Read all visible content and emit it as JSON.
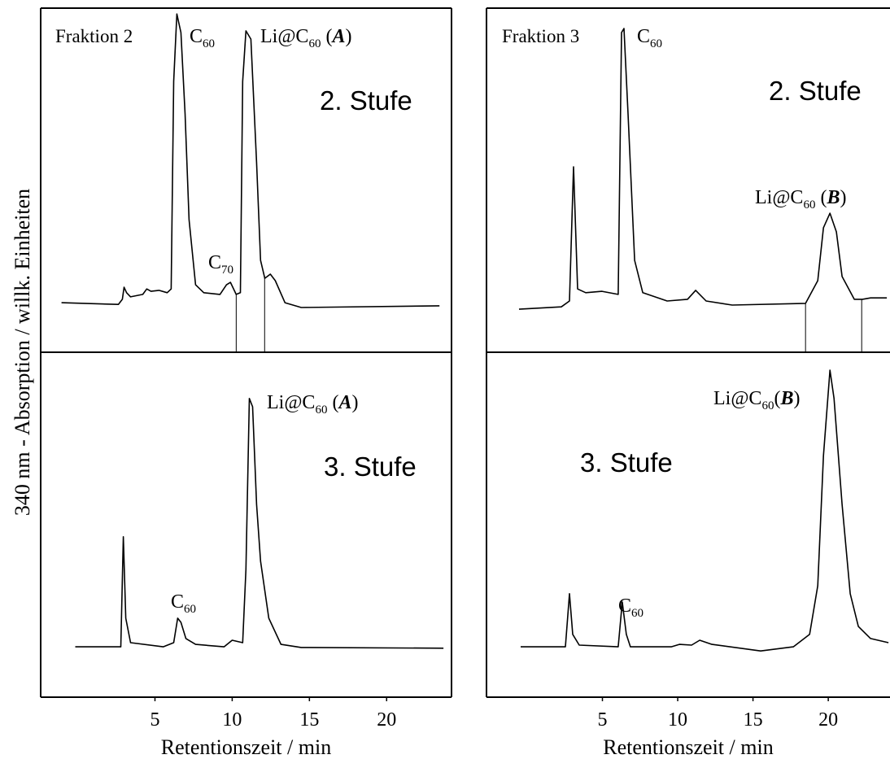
{
  "ylabel": "340 nm - Absorption / willk. Einheiten",
  "chart_data": [
    {
      "type": "line",
      "title": "Fraktion 2",
      "stage": "2. Stufe",
      "color": "#000000",
      "xlim": [
        -2.4,
        24.2
      ],
      "ylim": [
        0,
        100
      ],
      "cuts": [
        10.26,
        12.1
      ],
      "x": [
        -1.05,
        2.63,
        2.89,
        3.0,
        3.16,
        3.42,
        4.21,
        4.47,
        4.74,
        5.26,
        5.79,
        6.05,
        6.21,
        6.42,
        6.68,
        6.95,
        7.21,
        7.63,
        8.16,
        9.21,
        9.63,
        9.89,
        10.26,
        10.53,
        10.68,
        10.89,
        11.21,
        11.58,
        11.84,
        12.11,
        12.47,
        12.79,
        13.42,
        14.47,
        23.42
      ],
      "values": [
        14.4,
        13.9,
        15.4,
        18.9,
        17.3,
        16.1,
        16.8,
        18.4,
        17.7,
        18.0,
        17.3,
        18.4,
        78.7,
        98.3,
        92.9,
        69.3,
        38.5,
        19.6,
        17.3,
        16.8,
        19.6,
        20.3,
        16.8,
        17.3,
        78.7,
        93.4,
        91.0,
        55.1,
        26.7,
        21.5,
        22.7,
        20.8,
        14.4,
        13.0,
        13.5
      ],
      "annotations": [
        [
          {
            "text": "C"
          },
          {
            "text": "60",
            "sub": true
          }
        ],
        [
          {
            "text": "Li@C"
          },
          {
            "text": "60",
            "sub": true
          },
          {
            "text": " ("
          },
          {
            "text": "A",
            "em": true
          },
          {
            "text": ")"
          }
        ],
        [
          {
            "text": "C"
          },
          {
            "text": "70",
            "sub": true
          }
        ]
      ]
    },
    {
      "type": "line",
      "title": "Fraktion 3",
      "stage": "2. Stufe",
      "color": "#000000",
      "xlim": [
        -2.7,
        24.1
      ],
      "ylim": [
        0,
        100
      ],
      "cuts": [
        18.49,
        22.22
      ],
      "x": [
        -0.54,
        2.27,
        2.81,
        3.08,
        3.35,
        3.89,
        4.97,
        6.05,
        6.27,
        6.43,
        6.7,
        7.14,
        7.68,
        9.3,
        10.65,
        11.19,
        11.89,
        13.62,
        18.49,
        19.3,
        19.68,
        20.11,
        20.54,
        20.92,
        21.73,
        22.27,
        22.81,
        23.89
      ],
      "values": [
        12.5,
        13.2,
        14.9,
        53.9,
        18.4,
        17.3,
        17.7,
        16.8,
        92.9,
        94.1,
        69.3,
        26.7,
        17.3,
        14.9,
        15.4,
        18.0,
        14.9,
        13.7,
        14.2,
        20.8,
        36.2,
        40.4,
        35.0,
        22.0,
        15.4,
        15.4,
        15.8,
        15.8
      ],
      "annotations": [
        [
          {
            "text": "C"
          },
          {
            "text": "60",
            "sub": true
          }
        ],
        [
          {
            "text": "Li@C"
          },
          {
            "text": "60",
            "sub": true
          },
          {
            "text": " ("
          },
          {
            "text": "B",
            "em": true
          },
          {
            "text": ")"
          }
        ]
      ]
    },
    {
      "type": "line",
      "stage": "3. Stufe",
      "color": "#000000",
      "xlim": [
        -2.4,
        24.2
      ],
      "ylim": [
        0,
        100
      ],
      "xticks": [
        5,
        10,
        15,
        20
      ],
      "xlabel": "Retentionszeit / min",
      "x": [
        -0.16,
        2.79,
        2.95,
        3.11,
        3.42,
        5.53,
        6.21,
        6.47,
        6.68,
        7.0,
        7.63,
        9.47,
        10.0,
        10.68,
        10.89,
        11.11,
        11.32,
        11.58,
        11.84,
        12.37,
        13.16,
        14.47,
        23.68
      ],
      "values": [
        14.6,
        14.6,
        46.5,
        22.9,
        15.8,
        14.6,
        15.8,
        22.9,
        21.7,
        17.0,
        15.3,
        14.6,
        16.5,
        15.8,
        37.0,
        86.6,
        84.2,
        55.9,
        39.4,
        22.9,
        15.3,
        14.4,
        14.2
      ],
      "annotations": [
        [
          {
            "text": "Li@C"
          },
          {
            "text": "60",
            "sub": true
          },
          {
            "text": " ("
          },
          {
            "text": "A",
            "em": true
          },
          {
            "text": ")"
          }
        ],
        [
          {
            "text": "C"
          },
          {
            "text": "60",
            "sub": true
          }
        ]
      ]
    },
    {
      "type": "line",
      "stage": "3. Stufe",
      "color": "#000000",
      "xlim": [
        -2.7,
        24.1
      ],
      "ylim": [
        0,
        100
      ],
      "xticks": [
        5,
        10,
        15,
        20
      ],
      "xlabel": "Retentionszeit / min",
      "x": [
        -0.43,
        2.54,
        2.81,
        3.03,
        3.46,
        6.05,
        6.32,
        6.59,
        6.86,
        9.57,
        10.11,
        10.92,
        11.46,
        12.27,
        15.51,
        17.68,
        18.76,
        19.3,
        19.68,
        20.11,
        20.38,
        20.92,
        21.46,
        22.0,
        22.81,
        24.0
      ],
      "values": [
        14.6,
        14.6,
        30.0,
        18.2,
        15.1,
        14.6,
        27.6,
        18.2,
        14.6,
        14.6,
        15.3,
        15.1,
        16.5,
        15.3,
        13.4,
        14.6,
        18.2,
        32.3,
        70.0,
        94.8,
        86.6,
        55.9,
        30.0,
        20.5,
        17.0,
        15.8
      ],
      "annotations": [
        [
          {
            "text": "Li@C"
          },
          {
            "text": "60",
            "sub": true
          },
          {
            "text": "("
          },
          {
            "text": "B",
            "em": true
          },
          {
            "text": ")"
          }
        ],
        [
          {
            "text": "C"
          },
          {
            "text": "60",
            "sub": true
          }
        ]
      ]
    }
  ]
}
